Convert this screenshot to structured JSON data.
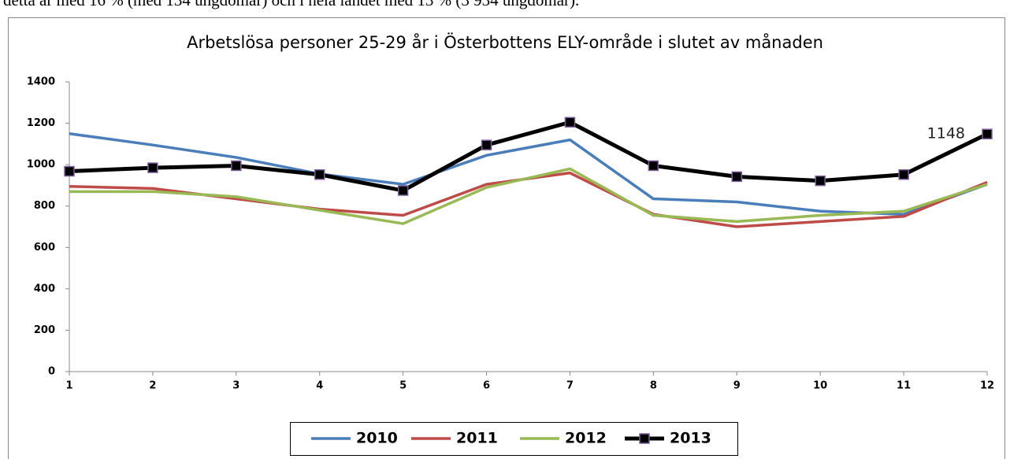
{
  "note": "detta är med 16 % (med 134 ungdomar) och i hela landet med 13 % (3 934 ungdomar).",
  "chart_data": {
    "type": "line",
    "title": "Arbetslösa personer 25-29 år i Österbottens ELY-område i slutet av månaden",
    "x": [
      1,
      2,
      3,
      4,
      5,
      6,
      7,
      8,
      9,
      10,
      11,
      12
    ],
    "xlim": [
      1,
      12
    ],
    "xticks": [
      1,
      2,
      3,
      4,
      5,
      6,
      7,
      8,
      9,
      10,
      11,
      12
    ],
    "ylim": [
      0,
      1400
    ],
    "yticks": [
      0,
      200,
      400,
      600,
      800,
      1000,
      1200,
      1400
    ],
    "grid": false,
    "legend": "bottom",
    "series": [
      {
        "name": "2010",
        "color": "#4a7ebb",
        "values": [
          1150,
          1095,
          1035,
          955,
          905,
          1045,
          1120,
          835,
          820,
          775,
          760,
          905
        ]
      },
      {
        "name": "2011",
        "color": "#be4b48",
        "values": [
          895,
          885,
          835,
          785,
          755,
          905,
          960,
          760,
          700,
          725,
          750,
          915
        ]
      },
      {
        "name": "2012",
        "color": "#98b954",
        "values": [
          870,
          870,
          845,
          780,
          715,
          890,
          980,
          755,
          725,
          755,
          775,
          905
        ]
      },
      {
        "name": "2013",
        "color": "#000000",
        "marker": "square",
        "values": [
          968,
          985,
          995,
          952,
          875,
          1095,
          1205,
          995,
          942,
          922,
          952,
          1148
        ]
      }
    ],
    "data_labels": [
      {
        "series": 3,
        "index": 11
      }
    ]
  }
}
